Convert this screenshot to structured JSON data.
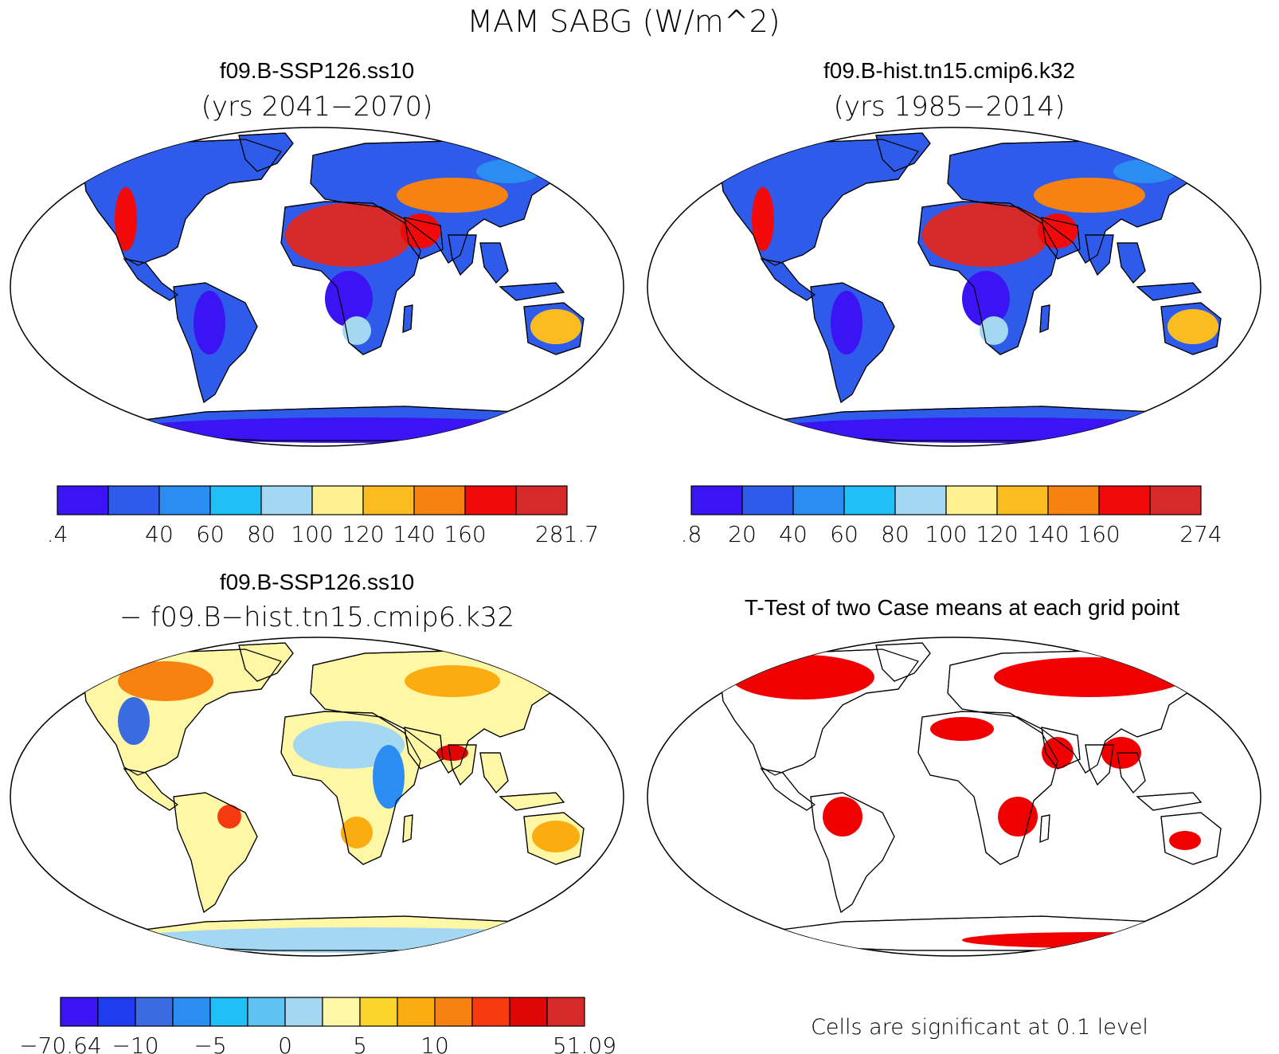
{
  "title": "MAM SABG (W/m^2)",
  "panels": [
    {
      "id": "ssp126",
      "title_line1": "f09.B-SSP126.ss10",
      "title_line2": "(yrs 2041−2070)",
      "colorbar": {
        "colors": [
          "#3a14f2",
          "#2f5bea",
          "#2b8cf2",
          "#1ec0f7",
          "#a4d8f2",
          "#fdf28f",
          "#fbbc22",
          "#f88210",
          "#f20a0a",
          "#d62a2a"
        ],
        "labels": [
          ".4",
          "",
          "40",
          "60",
          "80",
          "100",
          "120",
          "140",
          "160",
          "",
          "281.7"
        ]
      }
    },
    {
      "id": "hist",
      "title_line1": "f09.B-hist.tn15.cmip6.k32",
      "title_line2": "(yrs 1985−2014)",
      "colorbar": {
        "colors": [
          "#3a14f2",
          "#2f5bea",
          "#2b8cf2",
          "#1ec0f7",
          "#a4d8f2",
          "#fdf28f",
          "#fbbc22",
          "#f88210",
          "#f20a0a",
          "#d62a2a"
        ],
        "labels": [
          ".8",
          "20",
          "40",
          "60",
          "80",
          "100",
          "120",
          "140",
          "160",
          "",
          "274"
        ]
      }
    },
    {
      "id": "diff",
      "title_line1": "f09.B-SSP126.ss10",
      "title_line2": "− f09.B−hist.tn15.cmip6.k32",
      "colorbar": {
        "colors": [
          "#3a14f2",
          "#1f3cf0",
          "#3a6be0",
          "#2b8cf2",
          "#1ec0f7",
          "#5fc3f2",
          "#a4d8f2",
          "#fdf7a6",
          "#fbd52b",
          "#fbac10",
          "#f88210",
          "#f83a10",
          "#e00606",
          "#d62a2a"
        ],
        "labels": [
          "−70.64",
          "",
          "−10",
          "",
          "−5",
          "",
          "0",
          "",
          "5",
          "",
          "10",
          "",
          "",
          "",
          "51.09"
        ]
      }
    },
    {
      "id": "ttest",
      "title_line1": "T-Test of two Case means at each grid point",
      "caption": "Cells are significant at 0.1 level"
    }
  ],
  "palette": {
    "ocean": "#ffffff",
    "outline": "#000000",
    "significant": "#f00000"
  }
}
